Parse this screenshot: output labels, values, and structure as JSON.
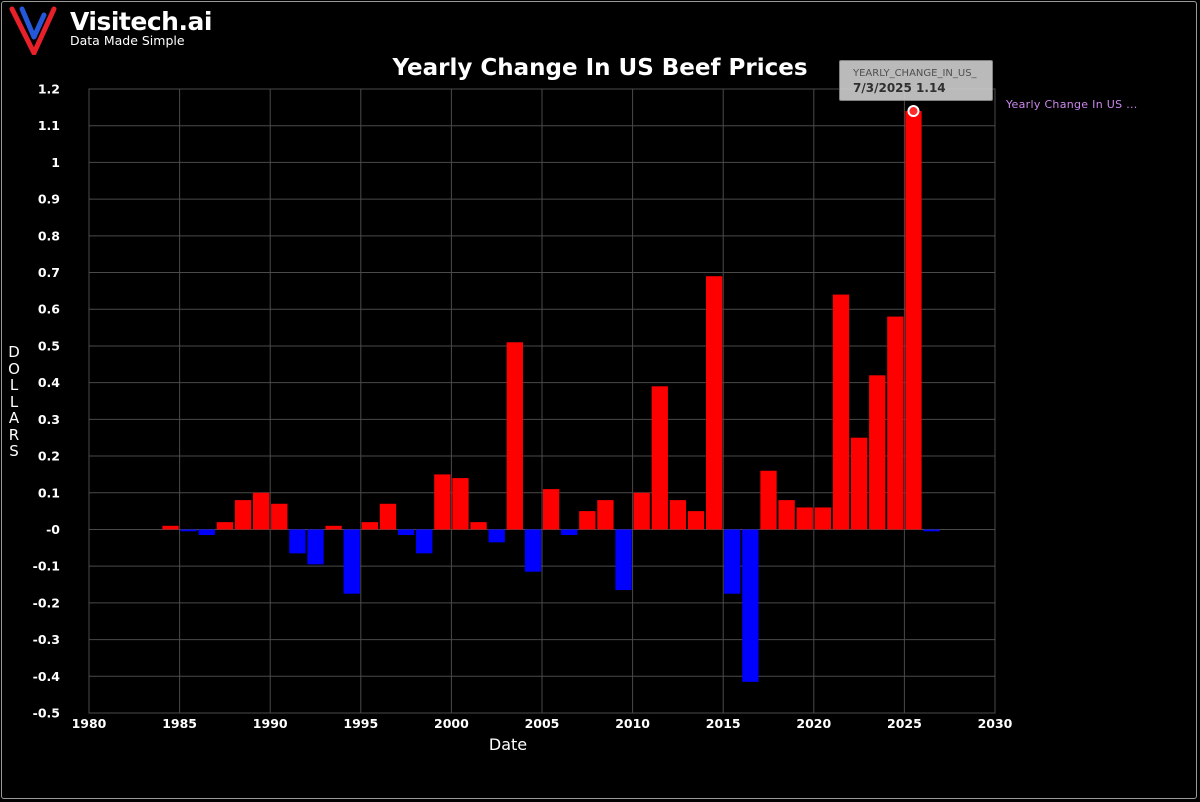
{
  "brand": {
    "name": "Visitech.ai",
    "tagline": "Data Made Simple",
    "colors": {
      "red": "#e8202a",
      "blue": "#2458d8"
    }
  },
  "chart_data": {
    "type": "bar",
    "title": "Yearly Change In US Beef Prices",
    "xlabel": "Date",
    "ylabel": "DOLLARS",
    "xlim": [
      1980,
      2030
    ],
    "ylim": [
      -0.5,
      1.2
    ],
    "x_ticks": [
      1980,
      1985,
      1990,
      1995,
      2000,
      2005,
      2010,
      2015,
      2020,
      2025,
      2030
    ],
    "y_ticks": [
      "1.2",
      "1.1",
      "1",
      "0.9",
      "0.8",
      "0.7",
      "0.6",
      "0.5",
      "0.4",
      "0.3",
      "0.2",
      "0.1",
      "-0",
      "-0.1",
      "-0.2",
      "-0.3",
      "-0.4",
      "-0.5"
    ],
    "grid": true,
    "positive_color": "#ff0000",
    "negative_color": "#0000ff",
    "series": [
      {
        "name": "Yearly_Change_In_US_Beef_Prices",
        "x": [
          1984.5,
          1985.5,
          1986.5,
          1987.5,
          1988.5,
          1989.5,
          1990.5,
          1991.5,
          1992.5,
          1993.5,
          1994.5,
          1995.5,
          1996.5,
          1997.5,
          1998.5,
          1999.5,
          2000.5,
          2001.5,
          2002.5,
          2003.5,
          2004.5,
          2005.5,
          2006.5,
          2007.5,
          2008.5,
          2009.5,
          2010.5,
          2011.5,
          2012.5,
          2013.5,
          2014.5,
          2015.5,
          2016.5,
          2017.5,
          2018.5,
          2019.5,
          2020.5,
          2021.5,
          2022.5,
          2023.5,
          2024.5,
          2025.5,
          2026.5
        ],
        "values": [
          0.01,
          -0.005,
          -0.015,
          0.02,
          0.08,
          0.1,
          0.07,
          -0.065,
          -0.095,
          0.01,
          -0.175,
          0.02,
          0.07,
          -0.015,
          -0.065,
          0.15,
          0.14,
          0.02,
          -0.035,
          0.51,
          -0.115,
          0.11,
          -0.015,
          0.05,
          0.08,
          -0.165,
          0.1,
          0.39,
          0.08,
          0.05,
          0.69,
          -0.175,
          -0.415,
          0.16,
          0.08,
          0.06,
          0.06,
          0.64,
          0.25,
          0.42,
          0.58,
          1.14,
          -0.005
        ]
      }
    ],
    "tooltip": {
      "series_label": "YEARLY_CHANGE_IN_US_",
      "value_text": "7/3/2025 1.14",
      "x": 2025.5,
      "y": 1.14
    },
    "legend": {
      "label": "Yearly  Change  In  US  ...",
      "color": "#cc88ee",
      "position": "right"
    }
  }
}
